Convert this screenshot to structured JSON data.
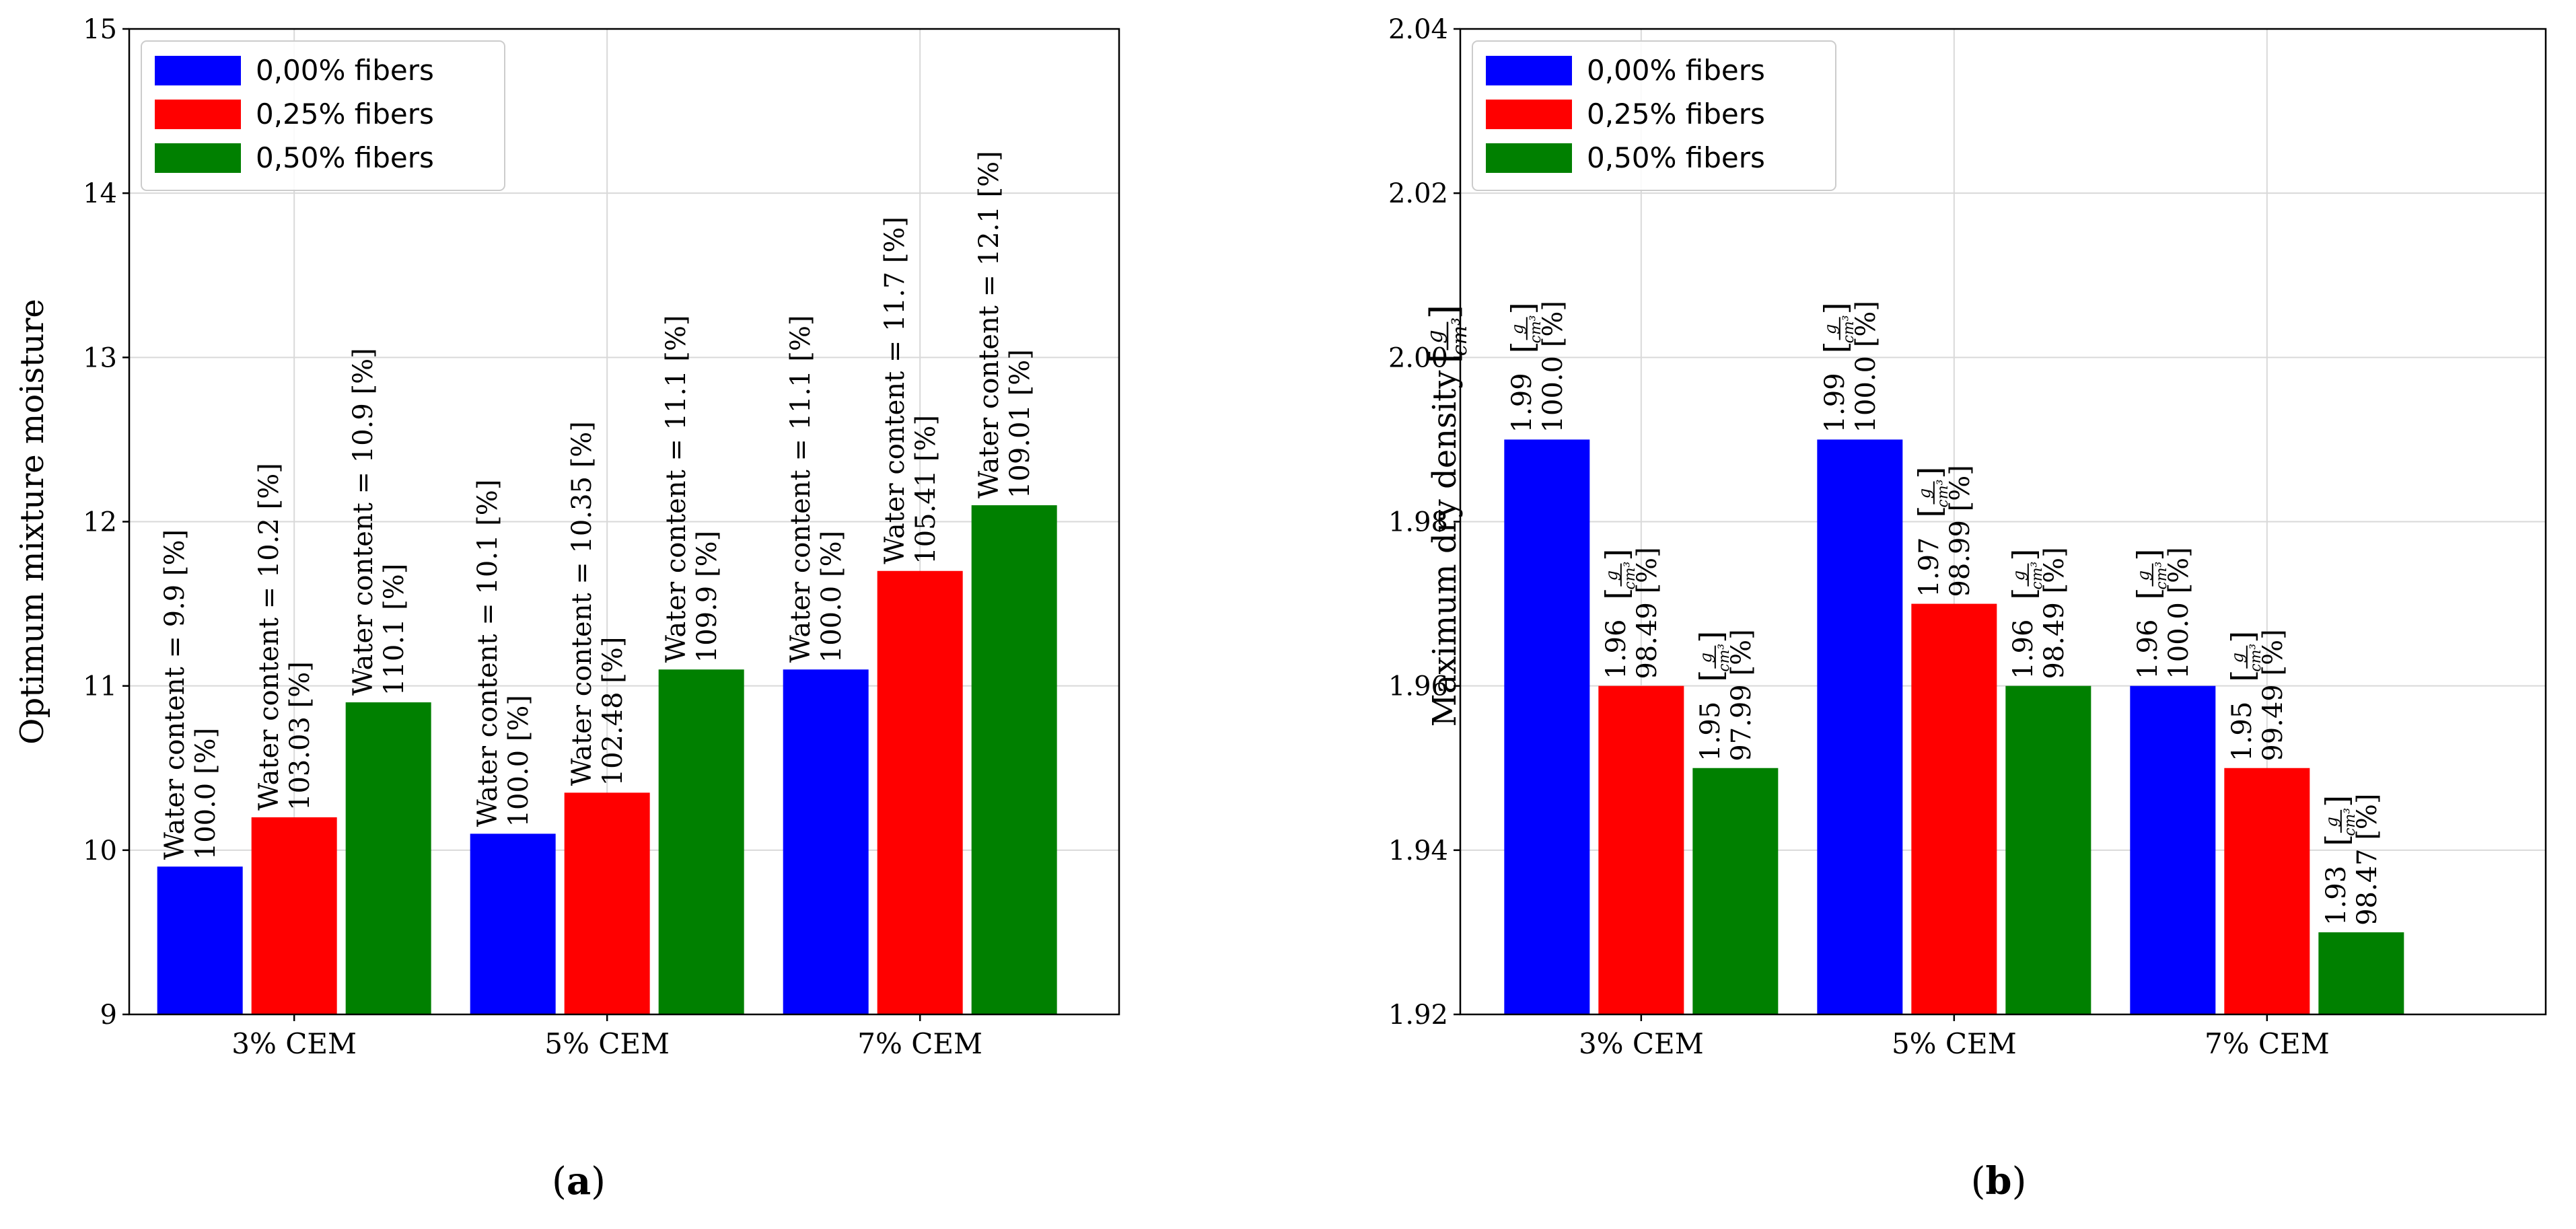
{
  "colors": {
    "series_0": "#0000ff",
    "series_1": "#ff0000",
    "series_2": "#008000",
    "grid": "#d9d9d9",
    "axis": "#000000"
  },
  "unit": {
    "frac_num": "g",
    "frac_den": "cm³",
    "percent": "[%]"
  },
  "chart_data": [
    {
      "type": "bar",
      "panel_label": "a",
      "categories": [
        "3% CEM",
        "5% CEM",
        "7% CEM"
      ],
      "series": [
        {
          "name": "0,00% fibers",
          "values": [
            9.9,
            10.1,
            11.1
          ],
          "relative": [
            "100.0",
            "100.0",
            "100.0"
          ]
        },
        {
          "name": "0,25% fibers",
          "values": [
            10.2,
            10.35,
            11.7
          ],
          "relative": [
            "103.03",
            "102.48",
            "105.41"
          ]
        },
        {
          "name": "0,50% fibers",
          "values": [
            10.9,
            11.1,
            12.1
          ],
          "relative": [
            "110.1",
            "109.9",
            "109.01"
          ]
        }
      ],
      "ylabel": "Optimum mixture moisture",
      "xlabel": "",
      "ylim": [
        9,
        15
      ],
      "yticks": [
        "9",
        "10",
        "11",
        "12",
        "13",
        "14",
        "15"
      ],
      "label_prefix": "Water content = ",
      "label_suffix": " [%]",
      "grid": true,
      "legend_position": "top-left"
    },
    {
      "type": "bar",
      "panel_label": "b",
      "categories": [
        "3% CEM",
        "5% CEM",
        "7% CEM"
      ],
      "series": [
        {
          "name": "0,00% fibers",
          "values": [
            1.99,
            1.99,
            1.96
          ],
          "relative": [
            "100.0",
            "100.0",
            "100.0"
          ]
        },
        {
          "name": "0,25% fibers",
          "values": [
            1.96,
            1.97,
            1.95
          ],
          "relative": [
            "98.49",
            "98.99",
            "99.49"
          ]
        },
        {
          "name": "0,50% fibers",
          "values": [
            1.95,
            1.96,
            1.93
          ],
          "relative": [
            "97.99",
            "98.49",
            "98.47"
          ]
        }
      ],
      "ylabel": "Maximum dry density",
      "xlabel": "",
      "ylim": [
        1.92,
        2.04
      ],
      "yticks": [
        "1.92",
        "1.94",
        "1.96",
        "1.98",
        "2.00",
        "2.02",
        "2.04"
      ],
      "grid": true,
      "legend_position": "top-left"
    }
  ]
}
